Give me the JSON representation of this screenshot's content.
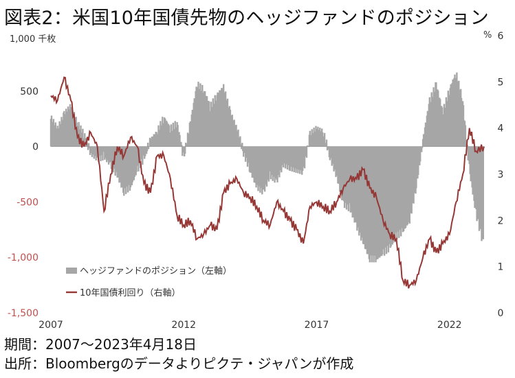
{
  "title": "図表2：米国10年国債先物のヘッジファンドのポジション",
  "left_unit": "1,000 千枚",
  "right_unit": "%",
  "footnotes": {
    "period": "期間：2007～2023年4月18日",
    "source": "出所：Bloombergのデータよりピクテ・ジャパンが作成"
  },
  "chart_data": {
    "type": "area+line",
    "title": "図表2：米国10年国債先物のヘッジファンドのポジション",
    "x_ticks": [
      "2007",
      "2012",
      "2017",
      "2022"
    ],
    "x_range": [
      2007.0,
      2023.3
    ],
    "y_left": {
      "unit": "千枚",
      "range": [
        -1500,
        1000
      ],
      "ticks": [
        "1,000",
        "500",
        "0",
        "-500",
        "-1,000",
        "-1,500"
      ],
      "tick_values": [
        1000,
        500,
        0,
        -500,
        -1000,
        -1500
      ]
    },
    "y_right": {
      "unit": "%",
      "range": [
        0,
        6
      ],
      "ticks": [
        "6",
        "5",
        "4",
        "3",
        "2",
        "1",
        "0"
      ],
      "tick_values": [
        6,
        5,
        4,
        3,
        2,
        1,
        0
      ]
    },
    "legend": {
      "position": "lower-left",
      "entries": [
        "ヘッジファンドのポジション（左軸）",
        "10年国債利回り（右軸）"
      ]
    },
    "colors": {
      "positions": "#a6a6a6",
      "yield": "#953735",
      "negative_ticks": "#c0504d"
    },
    "series": [
      {
        "name": "ヘッジファンドのポジション（左軸）",
        "axis": "left",
        "kind": "area",
        "x": [
          2007.0,
          2007.25,
          2007.5,
          2007.75,
          2008.0,
          2008.25,
          2008.5,
          2008.75,
          2009.0,
          2009.25,
          2009.5,
          2009.75,
          2010.0,
          2010.25,
          2010.5,
          2010.75,
          2011.0,
          2011.25,
          2011.5,
          2011.75,
          2012.0,
          2012.25,
          2012.5,
          2012.75,
          2013.0,
          2013.25,
          2013.5,
          2013.75,
          2014.0,
          2014.25,
          2014.5,
          2014.75,
          2015.0,
          2015.25,
          2015.5,
          2015.75,
          2016.0,
          2016.25,
          2016.5,
          2016.75,
          2017.0,
          2017.25,
          2017.5,
          2017.75,
          2018.0,
          2018.25,
          2018.5,
          2018.75,
          2019.0,
          2019.25,
          2019.5,
          2019.75,
          2020.0,
          2020.25,
          2020.5,
          2020.75,
          2021.0,
          2021.25,
          2021.5,
          2021.75,
          2022.0,
          2022.25,
          2022.5,
          2022.75,
          2023.0,
          2023.3
        ],
        "values": [
          250,
          150,
          280,
          350,
          200,
          100,
          -50,
          -100,
          -80,
          -150,
          -250,
          -400,
          -350,
          -200,
          -100,
          50,
          120,
          250,
          150,
          200,
          -100,
          200,
          550,
          500,
          350,
          450,
          520,
          300,
          150,
          -50,
          -200,
          -350,
          -400,
          -250,
          -300,
          -150,
          -180,
          -200,
          -220,
          100,
          150,
          120,
          -80,
          -250,
          -500,
          -550,
          -700,
          -850,
          -1000,
          -1000,
          -950,
          -900,
          -800,
          -750,
          -650,
          -350,
          50,
          400,
          550,
          300,
          500,
          650,
          400,
          -200,
          -600,
          -900
        ]
      },
      {
        "name": "10年国債利回り（右軸）",
        "axis": "right",
        "kind": "line",
        "x": [
          2007.0,
          2007.25,
          2007.5,
          2007.75,
          2008.0,
          2008.25,
          2008.5,
          2008.75,
          2009.0,
          2009.25,
          2009.5,
          2009.75,
          2010.0,
          2010.25,
          2010.5,
          2010.75,
          2011.0,
          2011.25,
          2011.5,
          2011.75,
          2012.0,
          2012.25,
          2012.5,
          2012.75,
          2013.0,
          2013.25,
          2013.5,
          2013.75,
          2014.0,
          2014.25,
          2014.5,
          2014.75,
          2015.0,
          2015.25,
          2015.5,
          2015.75,
          2016.0,
          2016.25,
          2016.5,
          2016.75,
          2017.0,
          2017.25,
          2017.5,
          2017.75,
          2018.0,
          2018.25,
          2018.5,
          2018.75,
          2019.0,
          2019.25,
          2019.5,
          2019.75,
          2020.0,
          2020.25,
          2020.5,
          2020.75,
          2021.0,
          2021.25,
          2021.5,
          2021.75,
          2022.0,
          2022.25,
          2022.5,
          2022.75,
          2023.0,
          2023.3
        ],
        "values": [
          4.7,
          4.6,
          5.1,
          4.6,
          3.8,
          3.6,
          3.9,
          3.6,
          2.2,
          3.0,
          3.6,
          3.4,
          3.8,
          3.6,
          2.8,
          2.6,
          3.4,
          3.4,
          2.9,
          2.1,
          1.9,
          2.0,
          1.6,
          1.7,
          1.9,
          1.8,
          2.6,
          2.8,
          2.9,
          2.6,
          2.5,
          2.3,
          2.0,
          1.9,
          2.4,
          2.2,
          2.0,
          1.8,
          1.5,
          2.3,
          2.4,
          2.3,
          2.2,
          2.4,
          2.7,
          2.9,
          2.9,
          3.1,
          2.7,
          2.5,
          2.0,
          1.7,
          1.6,
          0.7,
          0.6,
          0.7,
          1.2,
          1.6,
          1.3,
          1.5,
          1.7,
          2.4,
          3.0,
          4.0,
          3.5,
          3.6
        ]
      }
    ]
  }
}
